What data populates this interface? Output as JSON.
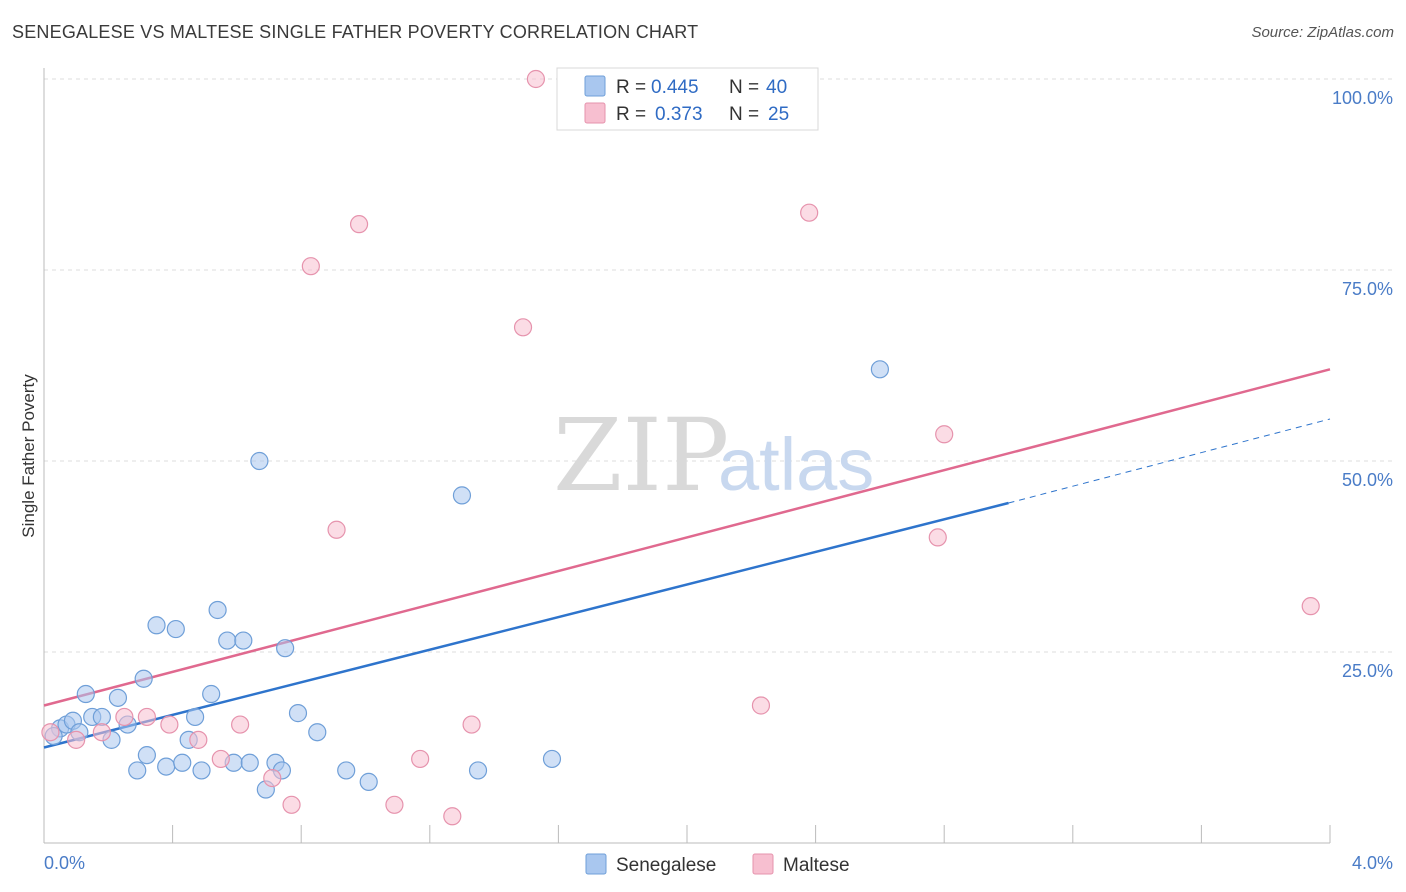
{
  "title": "SENEGALESE VS MALTESE SINGLE FATHER POVERTY CORRELATION CHART",
  "source": "Source: ZipAtlas.com",
  "watermark": {
    "zip": "ZIP",
    "atlas": "atlas"
  },
  "colors": {
    "senegalese_fill": "#a9c7ef",
    "senegalese_stroke": "#6f9fd8",
    "senegalese_line": "#2e74cc",
    "maltese_fill": "#f7bfd0",
    "maltese_stroke": "#e693ad",
    "maltese_line": "#e0698f",
    "grid": "#dddddd",
    "tick_text": "#4a7cc7"
  },
  "legend_top": {
    "rows": [
      {
        "series": "Senegalese",
        "r_label": "R =",
        "r_value": "0.445",
        "n_label": "N =",
        "n_value": "40"
      },
      {
        "series": "Maltese",
        "r_label": "R =",
        "r_value": "0.373",
        "n_label": "N =",
        "n_value": "25"
      }
    ]
  },
  "chart_data": {
    "type": "scatter",
    "title": "SENEGALESE VS MALTESE SINGLE FATHER POVERTY CORRELATION CHART",
    "xlabel": "",
    "ylabel": "Single Father Poverty",
    "xlim": [
      0,
      4.0
    ],
    "ylim": [
      0,
      100
    ],
    "x_tick_labels": [
      "0.0%",
      "4.0%"
    ],
    "y_ticks": [
      25,
      50,
      75,
      100
    ],
    "y_tick_labels": [
      "25.0%",
      "50.0%",
      "75.0%",
      "100.0%"
    ],
    "grid": true,
    "legend_bottom": [
      "Senegalese",
      "Maltese"
    ],
    "series": [
      {
        "name": "Senegalese",
        "points": [
          [
            0.05,
            15
          ],
          [
            0.07,
            15.5
          ],
          [
            0.09,
            16
          ],
          [
            0.13,
            19.5
          ],
          [
            0.15,
            16.5
          ],
          [
            0.18,
            16.5
          ],
          [
            0.21,
            13.5
          ],
          [
            0.23,
            19
          ],
          [
            0.26,
            15.5
          ],
          [
            0.29,
            9.5
          ],
          [
            0.31,
            21.5
          ],
          [
            0.32,
            11.5
          ],
          [
            0.35,
            28.5
          ],
          [
            0.38,
            10
          ],
          [
            0.41,
            28
          ],
          [
            0.43,
            10.5
          ],
          [
            0.45,
            13.5
          ],
          [
            0.47,
            16.5
          ],
          [
            0.49,
            9.5
          ],
          [
            0.52,
            19.5
          ],
          [
            0.54,
            30.5
          ],
          [
            0.57,
            26.5
          ],
          [
            0.59,
            10.5
          ],
          [
            0.62,
            26.5
          ],
          [
            0.64,
            10.5
          ],
          [
            0.67,
            50
          ],
          [
            0.69,
            7
          ],
          [
            0.72,
            10.5
          ],
          [
            0.74,
            9.5
          ],
          [
            0.75,
            25.5
          ],
          [
            0.79,
            17
          ],
          [
            0.85,
            14.5
          ],
          [
            0.94,
            9.5
          ],
          [
            1.01,
            8
          ],
          [
            1.3,
            45.5
          ],
          [
            1.35,
            9.5
          ],
          [
            1.58,
            11
          ],
          [
            2.6,
            62
          ],
          [
            0.03,
            14
          ],
          [
            0.11,
            14.5
          ]
        ],
        "trend": {
          "x": [
            0.0,
            3.0
          ],
          "y": [
            12.5,
            44.5
          ]
        },
        "trend_ext": {
          "x": [
            3.0,
            4.0
          ],
          "y": [
            44.5,
            55.5
          ]
        }
      },
      {
        "name": "Maltese",
        "points": [
          [
            0.02,
            14.5
          ],
          [
            0.1,
            13.5
          ],
          [
            0.18,
            14.5
          ],
          [
            0.25,
            16.5
          ],
          [
            0.32,
            16.5
          ],
          [
            0.39,
            15.5
          ],
          [
            0.48,
            13.5
          ],
          [
            0.55,
            11
          ],
          [
            0.61,
            15.5
          ],
          [
            0.71,
            8.5
          ],
          [
            0.77,
            5
          ],
          [
            0.83,
            75.5
          ],
          [
            0.91,
            41
          ],
          [
            0.98,
            81
          ],
          [
            1.09,
            5
          ],
          [
            1.17,
            11
          ],
          [
            1.27,
            3.5
          ],
          [
            1.33,
            15.5
          ],
          [
            1.49,
            67.5
          ],
          [
            1.53,
            100
          ],
          [
            2.23,
            18
          ],
          [
            2.38,
            82.5
          ],
          [
            2.78,
            40
          ],
          [
            2.8,
            53.5
          ],
          [
            3.94,
            31
          ]
        ],
        "trend": {
          "x": [
            0.0,
            4.0
          ],
          "y": [
            18,
            62
          ]
        }
      }
    ]
  }
}
